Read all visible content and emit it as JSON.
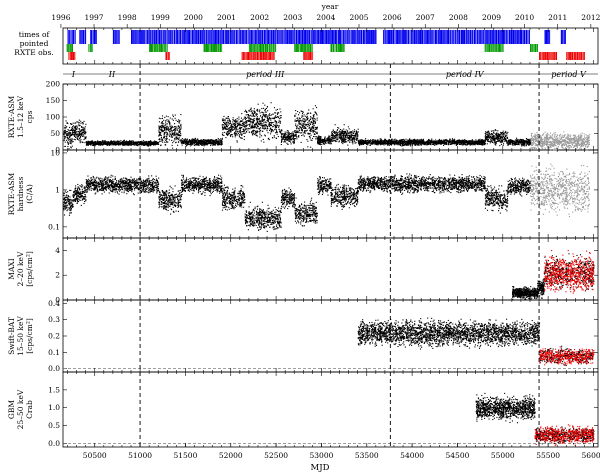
{
  "chart_data": {
    "type": "scatter",
    "top_axis": {
      "label": "year",
      "ticks": [
        "1996",
        "1997",
        "1998",
        "1999",
        "2000",
        "2001",
        "2002",
        "2003",
        "2004",
        "2005",
        "2006",
        "2007",
        "2008",
        "2009",
        "2010",
        "2011",
        "2012"
      ]
    },
    "bottom_axis": {
      "label": "MJD",
      "xlim": [
        50150,
        56050
      ],
      "ticks": [
        "50500",
        "51000",
        "51500",
        "52000",
        "52500",
        "53000",
        "53500",
        "54000",
        "54500",
        "55000",
        "55500",
        "56000"
      ]
    },
    "epochs": [
      {
        "x": 51000,
        "label": ""
      },
      {
        "x": 53760,
        "label": ""
      },
      {
        "x": 55400,
        "label": ""
      }
    ],
    "periods": [
      {
        "label": "I",
        "x0": 50150,
        "x1": 50380
      },
      {
        "label": "II",
        "x0": 50380,
        "x1": 51000
      },
      {
        "label": "period III",
        "x0": 51000,
        "x1": 53760
      },
      {
        "label": "period IV",
        "x0": 53760,
        "x1": 55400
      },
      {
        "label": "period V",
        "x0": 55400,
        "x1": 56050
      }
    ],
    "panels": [
      {
        "id": "pointed",
        "label_lines": [
          "times of",
          "pointed",
          "RXTE obs."
        ],
        "ylim": [
          0,
          3
        ],
        "log": false,
        "yticks": []
      },
      {
        "id": "asm",
        "label_lines": [
          "RXTE-ASM",
          "1.5–12 keV",
          "cps"
        ],
        "ylim": [
          0,
          200
        ],
        "log": false,
        "yticks": [
          "0",
          "50",
          "100",
          "150",
          "200"
        ]
      },
      {
        "id": "hardness",
        "label_lines": [
          "RXTE-ASM",
          "hardness",
          "(C/A)"
        ],
        "ylim": [
          0.05,
          12
        ],
        "log": true,
        "yticks": [
          "0.1",
          "1",
          "10"
        ]
      },
      {
        "id": "maxi",
        "label_lines": [
          "MAXI",
          "2–20 keV",
          "[cps/cm²]"
        ],
        "ylim": [
          0,
          5
        ],
        "log": false,
        "yticks": [
          "0",
          "2",
          "4"
        ]
      },
      {
        "id": "bat",
        "label_lines": [
          "Swift-BAT",
          "15–50 keV",
          "[cps/cm²]"
        ],
        "ylim": [
          -0.02,
          0.42
        ],
        "log": false,
        "yticks": [
          "0.0",
          "0.1",
          "0.2",
          "0.3",
          "0.4"
        ]
      },
      {
        "id": "gbm",
        "label_lines": [
          "GBM",
          "25–50 keV",
          "Crab"
        ],
        "ylim": [
          -0.1,
          2.0
        ],
        "log": false,
        "yticks": [
          "0.0",
          "0.5",
          "1.0",
          "1.5"
        ]
      }
    ],
    "series_colors": {
      "hard": "#0000ee",
      "intermediate": "#009900",
      "soft": "#ee0000",
      "unknown": "#999999",
      "hard_black": "#000000"
    },
    "pointed_coverage": {
      "blue": [
        [
          50200,
          50290
        ],
        [
          50330,
          50400
        ],
        [
          50450,
          50520
        ],
        [
          50700,
          50780
        ],
        [
          50900,
          53600
        ],
        [
          53680,
          55300
        ],
        [
          55460,
          55520
        ],
        [
          55640,
          55700
        ]
      ],
      "green": [
        [
          50190,
          50260
        ],
        [
          50430,
          50470
        ],
        [
          51100,
          51300
        ],
        [
          51700,
          51900
        ],
        [
          52200,
          52500
        ],
        [
          52700,
          52900
        ],
        [
          53100,
          53250
        ],
        [
          54800,
          55000
        ],
        [
          55300,
          55380
        ]
      ],
      "red": [
        [
          50210,
          50280
        ],
        [
          51280,
          51330
        ],
        [
          52120,
          52480
        ],
        [
          52800,
          52900
        ],
        [
          55400,
          55600
        ],
        [
          55700,
          55900
        ]
      ]
    },
    "asm_segments": [
      {
        "x0": 50150,
        "x1": 50260,
        "base": 50,
        "amp": 30,
        "color": "red"
      },
      {
        "x0": 50260,
        "x1": 50400,
        "base": 55,
        "amp": 25,
        "color": "green"
      },
      {
        "x0": 50400,
        "x1": 51200,
        "base": 22,
        "amp": 6,
        "color": "blue"
      },
      {
        "x0": 51200,
        "x1": 51450,
        "base": 60,
        "amp": 35,
        "color": "green"
      },
      {
        "x0": 51450,
        "x1": 51900,
        "base": 25,
        "amp": 8,
        "color": "blue"
      },
      {
        "x0": 51900,
        "x1": 52150,
        "base": 70,
        "amp": 30,
        "color": "green"
      },
      {
        "x0": 52150,
        "x1": 52550,
        "base": 85,
        "amp": 40,
        "color": "red"
      },
      {
        "x0": 52550,
        "x1": 52700,
        "base": 40,
        "amp": 15,
        "color": "green"
      },
      {
        "x0": 52700,
        "x1": 52950,
        "base": 75,
        "amp": 40,
        "color": "red"
      },
      {
        "x0": 52950,
        "x1": 53100,
        "base": 30,
        "amp": 10,
        "color": "blue"
      },
      {
        "x0": 53100,
        "x1": 53400,
        "base": 45,
        "amp": 20,
        "color": "green"
      },
      {
        "x0": 53400,
        "x1": 54800,
        "base": 25,
        "amp": 7,
        "color": "blue"
      },
      {
        "x0": 54800,
        "x1": 55050,
        "base": 40,
        "amp": 18,
        "color": "green"
      },
      {
        "x0": 55050,
        "x1": 55300,
        "base": 25,
        "amp": 8,
        "color": "blue"
      },
      {
        "x0": 55300,
        "x1": 55950,
        "base": 28,
        "amp": 20,
        "color": "unknown"
      }
    ],
    "hardness_segments": [
      {
        "x0": 50150,
        "x1": 50260,
        "base": 0.45,
        "spread": 1.8,
        "color": "red"
      },
      {
        "x0": 50260,
        "x1": 50400,
        "base": 0.8,
        "spread": 1.6,
        "color": "green"
      },
      {
        "x0": 50400,
        "x1": 51200,
        "base": 1.4,
        "spread": 1.5,
        "color": "blue"
      },
      {
        "x0": 51200,
        "x1": 51450,
        "base": 0.55,
        "spread": 1.8,
        "color": "green"
      },
      {
        "x0": 51450,
        "x1": 51900,
        "base": 1.4,
        "spread": 1.5,
        "color": "blue"
      },
      {
        "x0": 51900,
        "x1": 52150,
        "base": 0.6,
        "spread": 1.8,
        "color": "green"
      },
      {
        "x0": 52150,
        "x1": 52550,
        "base": 0.18,
        "spread": 1.8,
        "color": "red"
      },
      {
        "x0": 52550,
        "x1": 52700,
        "base": 0.6,
        "spread": 1.6,
        "color": "green"
      },
      {
        "x0": 52700,
        "x1": 52950,
        "base": 0.25,
        "spread": 1.8,
        "color": "red"
      },
      {
        "x0": 52950,
        "x1": 53100,
        "base": 1.3,
        "spread": 1.5,
        "color": "blue"
      },
      {
        "x0": 53100,
        "x1": 53400,
        "base": 0.7,
        "spread": 1.7,
        "color": "green"
      },
      {
        "x0": 53400,
        "x1": 54800,
        "base": 1.5,
        "spread": 1.5,
        "color": "blue"
      },
      {
        "x0": 54800,
        "x1": 55050,
        "base": 0.6,
        "spread": 1.8,
        "color": "green"
      },
      {
        "x0": 55050,
        "x1": 55300,
        "base": 1.3,
        "spread": 1.5,
        "color": "blue"
      },
      {
        "x0": 55300,
        "x1": 55950,
        "base": 1.0,
        "spread": 3.0,
        "color": "unknown"
      }
    ],
    "maxi_segments": [
      {
        "x0": 55100,
        "x1": 55380,
        "base": 0.6,
        "amp": 0.35,
        "color": "blue"
      },
      {
        "x0": 55380,
        "x1": 55450,
        "base": 1.0,
        "amp": 0.5,
        "color": "green"
      },
      {
        "x0": 55450,
        "x1": 56000,
        "base": 2.2,
        "amp": 1.1,
        "color": "soft_mix"
      }
    ],
    "bat_segments": [
      {
        "x0": 53400,
        "x1": 55400,
        "base": 0.22,
        "amp": 0.06,
        "color": "hard_black"
      },
      {
        "x0": 55400,
        "x1": 56000,
        "base": 0.08,
        "amp": 0.04,
        "color": "soft_mix"
      }
    ],
    "gbm_segments": [
      {
        "x0": 54700,
        "x1": 55350,
        "base": 1.0,
        "amp": 0.25,
        "color": "hard_black"
      },
      {
        "x0": 55350,
        "x1": 56000,
        "base": 0.25,
        "amp": 0.18,
        "color": "soft_mix"
      }
    ]
  }
}
